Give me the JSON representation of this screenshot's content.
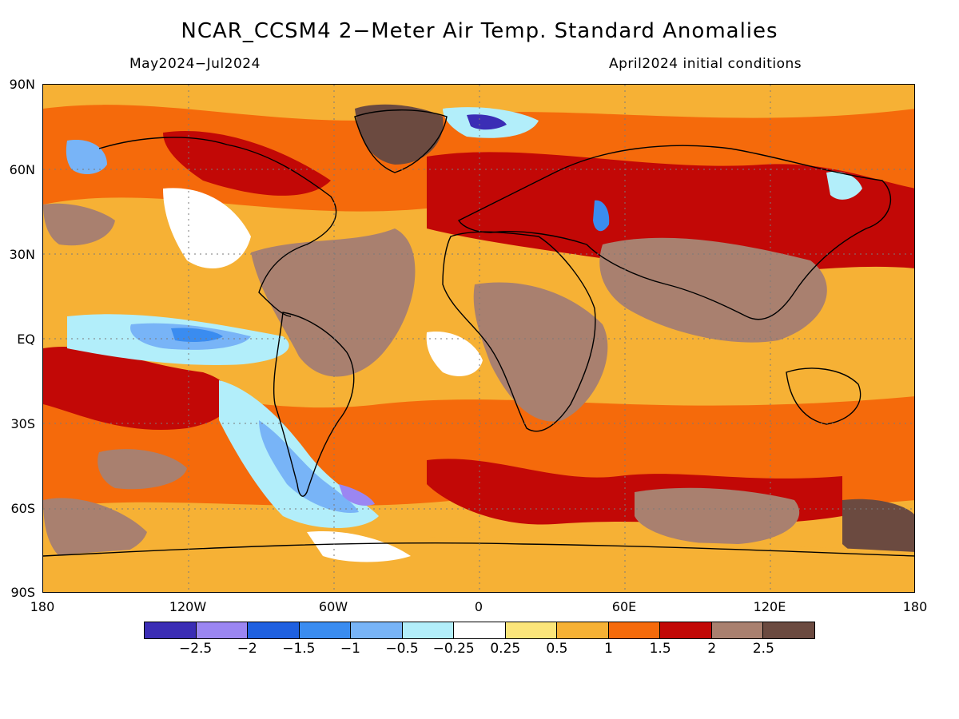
{
  "title": "NCAR_CCSM4 2−Meter Air Temp. Standard Anomalies",
  "period": "May2024−Jul2024",
  "init": "April2024 initial conditions",
  "lat_labels": [
    "90N",
    "60N",
    "30N",
    "EQ",
    "30S",
    "60S",
    "90S"
  ],
  "lon_labels": [
    "180",
    "120W",
    "60W",
    "0",
    "60E",
    "120E",
    "180"
  ],
  "colorbar": {
    "colors": [
      "#3b2db5",
      "#9b86f2",
      "#1f60e0",
      "#3a8cf0",
      "#78b4f7",
      "#b2eefa",
      "#ffffff",
      "#fbe57a",
      "#f6b135",
      "#f56a0b",
      "#c20806",
      "#a9806f",
      "#6b4a40"
    ],
    "labels": [
      "−2.5",
      "−2",
      "−1.5",
      "−1",
      "−0.5",
      "−0.25",
      "0.25",
      "0.5",
      "1",
      "1.5",
      "2",
      "2.5"
    ]
  }
}
